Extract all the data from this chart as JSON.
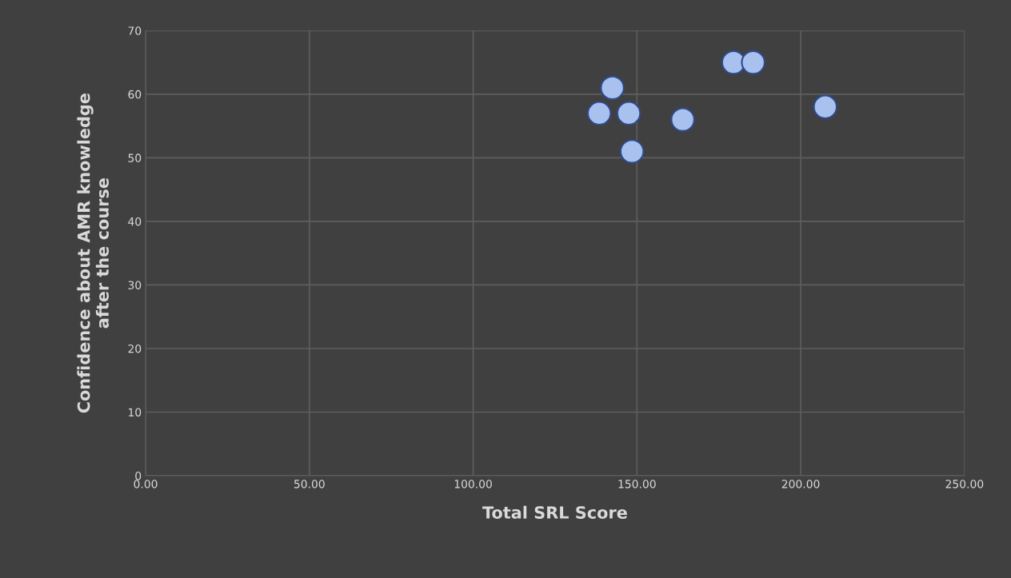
{
  "chart_data": {
    "type": "scatter",
    "xlabel": "Total SRL Score",
    "ylabel": "Confidence about AMR knowledge\nafter the course",
    "x": [
      138.5,
      142.5,
      147.5,
      148.5,
      164,
      179.5,
      185.5,
      207.5
    ],
    "series": [
      {
        "color": "#a9c1ef",
        "values": [
          57,
          61,
          57,
          51,
          56,
          65,
          65,
          58
        ]
      }
    ],
    "xlim": [
      0,
      250
    ],
    "xticks": [
      {
        "value": 0,
        "label": "0.00"
      },
      {
        "value": 50,
        "label": "50.00"
      },
      {
        "value": 100,
        "label": "100.00"
      },
      {
        "value": 150,
        "label": "150.00"
      },
      {
        "value": 200,
        "label": "200.00"
      },
      {
        "value": 250,
        "label": "250.00"
      }
    ],
    "ylim": [
      0,
      70
    ],
    "yticks": [
      0,
      10,
      20,
      30,
      40,
      50,
      60,
      70
    ],
    "grid": true,
    "marker": "circle"
  }
}
